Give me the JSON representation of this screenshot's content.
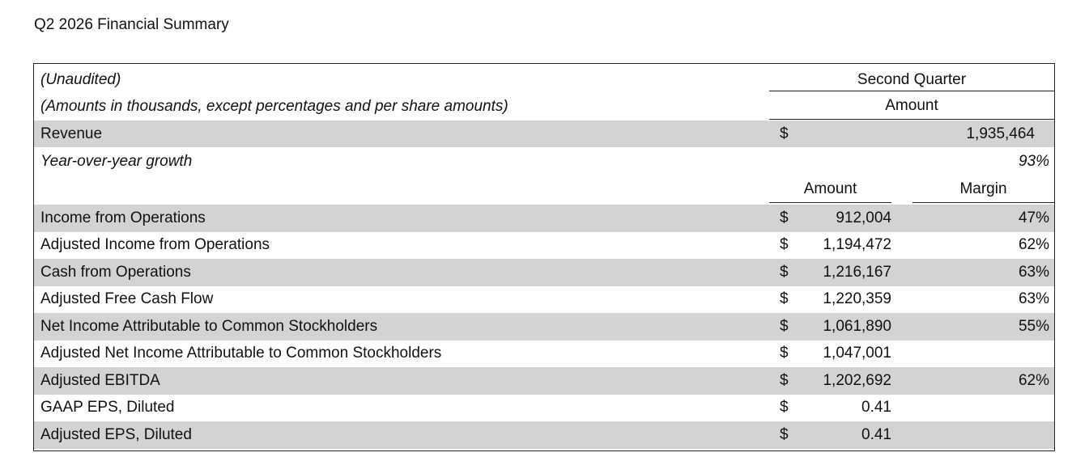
{
  "header": {
    "title": "Q2 2026 Financial Summary"
  },
  "table": {
    "notes": [
      "(Unaudited)",
      "(Amounts in thousands, except percentages and per share amounts)"
    ],
    "period": "Second Quarter",
    "period_column": "Amount",
    "revenue": {
      "label": "Revenue",
      "currency": "$",
      "value": "1,935,464"
    },
    "growth": {
      "label": "Year-over-year growth",
      "value": "93%"
    },
    "columns": [
      "Amount",
      "Margin"
    ],
    "rows": [
      [
        "Income from Operations",
        "$",
        "912,004",
        "47%"
      ],
      [
        "Adjusted Income from Operations",
        "$",
        "1,194,472",
        "62%"
      ],
      [
        "Cash from Operations",
        "$",
        "1,216,167",
        "63%"
      ],
      [
        "Adjusted Free Cash Flow",
        "$",
        "1,220,359",
        "63%"
      ],
      [
        "Net Income Attributable to Common Stockholders",
        "$",
        "1,061,890",
        "55%"
      ],
      [
        "Adjusted Net Income Attributable to Common Stockholders",
        "$",
        "1,047,001"
      ],
      [
        "Adjusted EBITDA",
        "$",
        "1,202,692",
        "62%"
      ],
      [
        "GAAP EPS, Diluted",
        "$",
        "0.41"
      ],
      [
        "Adjusted EPS, Diluted",
        "$",
        "0.41"
      ]
    ]
  }
}
